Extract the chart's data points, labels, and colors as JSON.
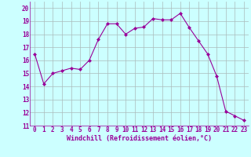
{
  "x": [
    0,
    1,
    2,
    3,
    4,
    5,
    6,
    7,
    8,
    9,
    10,
    11,
    12,
    13,
    14,
    15,
    16,
    17,
    18,
    19,
    20,
    21,
    22,
    23
  ],
  "y": [
    16.5,
    14.2,
    15.0,
    15.2,
    15.4,
    15.3,
    16.0,
    17.6,
    18.8,
    18.8,
    18.0,
    18.45,
    18.55,
    19.2,
    19.1,
    19.1,
    19.6,
    18.5,
    17.5,
    16.5,
    14.8,
    12.1,
    11.75,
    11.4
  ],
  "line_color": "#990099",
  "marker": "D",
  "marker_size": 2.0,
  "bg_color": "#ccffff",
  "grid_color": "#aabbbb",
  "xlabel": "Windchill (Refroidissement éolien,°C)",
  "xlabel_color": "#990099",
  "tick_color": "#990099",
  "label_color": "#990099",
  "ylim": [
    11,
    20.5
  ],
  "xlim": [
    -0.5,
    23.5
  ],
  "yticks": [
    11,
    12,
    13,
    14,
    15,
    16,
    17,
    18,
    19,
    20
  ],
  "xticks": [
    0,
    1,
    2,
    3,
    4,
    5,
    6,
    7,
    8,
    9,
    10,
    11,
    12,
    13,
    14,
    15,
    16,
    17,
    18,
    19,
    20,
    21,
    22,
    23
  ],
  "tick_fontsize": 5.5,
  "xlabel_fontsize": 6.0
}
